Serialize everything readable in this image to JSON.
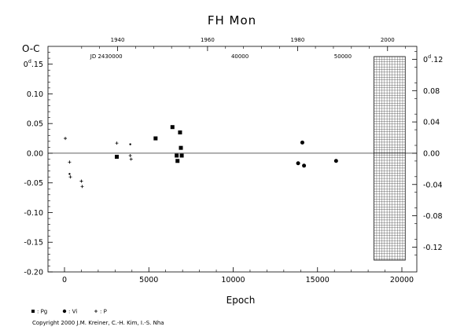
{
  "chart_data": {
    "type": "scatter",
    "title": "FH  Mon",
    "ylabel": "O-C",
    "xlabel": "Epoch",
    "xlim": [
      -1100,
      21000
    ],
    "ylim": [
      -0.2,
      0.18
    ],
    "y_right_lim": [
      -0.131,
      0.131
    ],
    "x_ticks": [
      "0",
      "5000",
      "10000",
      "15000",
      "20000"
    ],
    "x_tick_values": [
      0,
      5000,
      10000,
      15000,
      20000
    ],
    "y_ticks": [
      "0.15",
      "0.10",
      "0.05",
      "0.00",
      "-0.05",
      "-0.10",
      "-0.15",
      "-0.20"
    ],
    "y_tick_values": [
      0.15,
      0.1,
      0.05,
      0.0,
      -0.05,
      -0.1,
      -0.15,
      -0.2
    ],
    "y_tick_top_label": "0",
    "y_tick_top_sup": "d",
    "y_tick_top_rest": ".15",
    "y_right_ticks": [
      "0.12",
      "0.08",
      "0.04",
      "0.00",
      "-0.04",
      "-0.08",
      "-0.12"
    ],
    "y_right_tick_values": [
      0.12,
      0.08,
      0.04,
      0.0,
      -0.04,
      -0.08,
      -0.12
    ],
    "y_right_top_label": "0",
    "y_right_top_sup": "d",
    "y_right_top_rest": ".12",
    "top_year_ticks": [
      "1940",
      "1960",
      "1980",
      "2000"
    ],
    "top_year_epochs": [
      3150,
      8480,
      13820,
      19150
    ],
    "top_jd_ticks": [
      "JD 2430000",
      "40000",
      "50000"
    ],
    "top_jd_epochs": [
      2480,
      10400,
      16500
    ],
    "grid": false,
    "future_region": {
      "x_start": 18350,
      "x_end": 20200
    },
    "series": [
      {
        "name": ": Pg",
        "marker": "square",
        "x": [
          3100,
          5400,
          6400,
          6650,
          6850,
          6900,
          6950,
          6700
        ],
        "y": [
          -0.006,
          0.025,
          0.044,
          -0.004,
          0.035,
          0.009,
          -0.004,
          -0.013
        ]
      },
      {
        "name": ": Vi",
        "marker": "circle",
        "x": [
          13850,
          14100,
          14200,
          16100
        ],
        "y": [
          -0.017,
          0.018,
          -0.021,
          -0.013
        ]
      },
      {
        "name": ": P",
        "marker": "plus",
        "x": [
          50,
          300,
          350,
          1000,
          1050,
          3100,
          3900,
          3950
        ],
        "y": [
          0.025,
          -0.015,
          -0.04,
          -0.047,
          -0.056,
          0.017,
          -0.004,
          -0.01
        ]
      },
      {
        "name": "",
        "marker": "dot",
        "x": [
          300,
          3900
        ],
        "y": [
          -0.035,
          0.015
        ]
      }
    ],
    "legend": [
      {
        "marker": "square",
        "label": ": Pg"
      },
      {
        "marker": "circle",
        "label": ": Vi"
      },
      {
        "marker": "plus",
        "label": ": P"
      }
    ]
  },
  "copyright": "Copyright 2000 J.M. Kreiner, C.-H. Kim, I.-S. Nha"
}
